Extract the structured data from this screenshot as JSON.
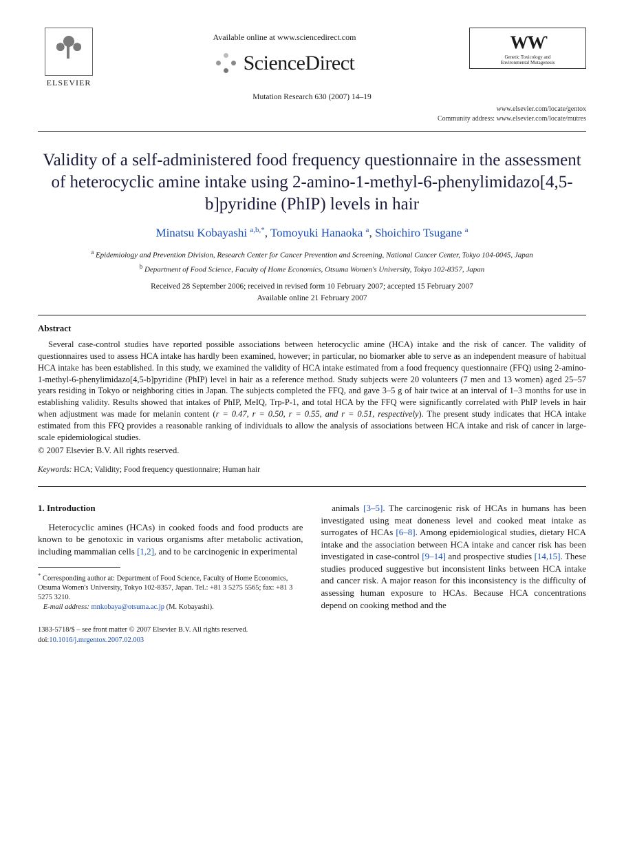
{
  "header": {
    "publisher": "ELSEVIER",
    "available_online": "Available online at www.sciencedirect.com",
    "sd_brand": "ScienceDirect",
    "journal_ref": "Mutation Research 630 (2007) 14–19",
    "mr_logo_sub1": "Genetic Toxicology and",
    "mr_logo_sub2": "Environmental Mutagenesis",
    "url1": "www.elsevier.com/locate/gentox",
    "url2_label": "Community address:",
    "url2": "www.elsevier.com/locate/mutres"
  },
  "title": "Validity of a self-administered food frequency questionnaire in the assessment of heterocyclic amine intake using 2-amino-1-methyl-6-phenylimidazo[4,5-b]pyridine (PhIP) levels in hair",
  "authors": {
    "a1_name": "Minatsu Kobayashi",
    "a1_aff": "a,b,",
    "a1_star": "*",
    "a2_name": "Tomoyuki Hanaoka",
    "a2_aff": "a",
    "a3_name": "Shoichiro Tsugane",
    "a3_aff": "a"
  },
  "affiliations": {
    "a": "Epidemiology and Prevention Division, Research Center for Cancer Prevention and Screening, National Cancer Center, Tokyo 104-0045, Japan",
    "b": "Department of Food Science, Faculty of Home Economics, Otsuma Women's University, Tokyo 102-8357, Japan"
  },
  "dates": {
    "line1": "Received 28 September 2006; received in revised form 10 February 2007; accepted 15 February 2007",
    "line2": "Available online 21 February 2007"
  },
  "abstract": {
    "heading": "Abstract",
    "body_pre": "Several case-control studies have reported possible associations between heterocyclic amine (HCA) intake and the risk of cancer. The validity of questionnaires used to assess HCA intake has hardly been examined, however; in particular, no biomarker able to serve as an independent measure of habitual HCA intake has been established. In this study, we examined the validity of HCA intake estimated from a food frequency questionnaire (FFQ) using 2-amino-1-methyl-6-phenylimidazo[4,5-b]pyridine (PhIP) level in hair as a reference method. Study subjects were 20 volunteers (7 men and 13 women) aged 25–57 years residing in Tokyo or neighboring cities in Japan. The subjects completed the FFQ, and gave 3–5 g of hair twice at an interval of 1–3 months for use in establishing validity. Results showed that intakes of PhIP, MeIQ, Trp-P-1, and total HCA by the FFQ were significantly correlated with PhIP levels in hair when adjustment was made for melanin content (",
    "r1": "r = 0.47, ",
    "r2": "r = 0.50, ",
    "r3": "r = 0.55, and ",
    "r4": "r = 0.51, respectively",
    "body_post": "). The present study indicates that HCA intake estimated from this FFQ provides a reasonable ranking of individuals to allow the analysis of associations between HCA intake and risk of cancer in large-scale epidemiological studies.",
    "copyright": "© 2007 Elsevier B.V. All rights reserved."
  },
  "keywords": {
    "label": "Keywords:",
    "text": "HCA; Validity; Food frequency questionnaire; Human hair"
  },
  "section1": {
    "heading": "1.  Introduction",
    "col1_pre": "Heterocyclic amines (HCAs) in cooked foods and food products are known to be genotoxic in various organisms after metabolic activation, including mammalian cells ",
    "cite12": "[1,2]",
    "col1_post": ", and to be carcinogenic in experimental",
    "col2_a": "animals ",
    "cite35": "[3–5]",
    "col2_b": ". The carcinogenic risk of HCAs in humans has been investigated using meat doneness level and cooked meat intake as surrogates of HCAs ",
    "cite68": "[6–8]",
    "col2_c": ". Among epidemiological studies, dietary HCA intake and the association between HCA intake and cancer risk has been investigated in case-control ",
    "cite914": "[9–14]",
    "col2_d": " and prospective studies ",
    "cite1415": "[14,15]",
    "col2_e": ". These studies produced suggestive but inconsistent links between HCA intake and cancer risk. A major reason for this inconsistency is the difficulty of assessing human exposure to HCAs. Because HCA concentrations depend on cooking method and the"
  },
  "footnote": {
    "corr": "Corresponding author at: Department of Food Science, Faculty of Home Economics, Otsuma Women's University, Tokyo 102-8357, Japan. Tel.: +81 3 5275 5565; fax: +81 3 5275 3210.",
    "email_label": "E-mail address:",
    "email": "mnkobaya@otsuma.ac.jp",
    "email_who": "(M. Kobayashi)."
  },
  "bottom": {
    "front": "1383-5718/$ – see front matter © 2007 Elsevier B.V. All rights reserved.",
    "doi_label": "doi:",
    "doi": "10.1016/j.mrgentox.2007.02.003"
  },
  "colors": {
    "link": "#1a4db3",
    "text": "#1a1a1a",
    "background": "#ffffff"
  }
}
